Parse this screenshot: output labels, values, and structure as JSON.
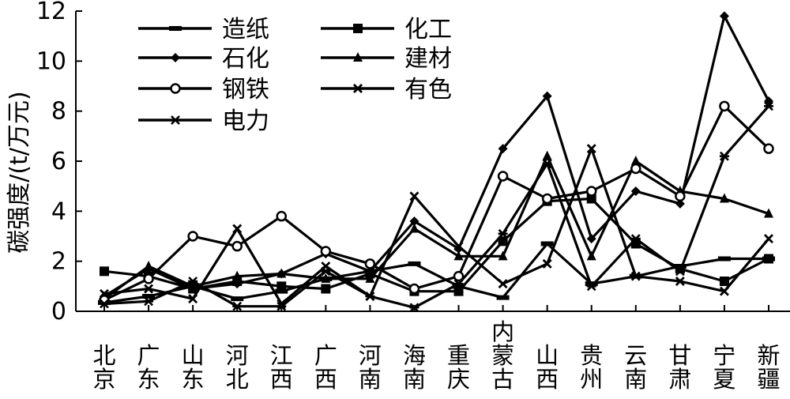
{
  "chart_data": {
    "type": "line",
    "ylabel": "碳强度/(t/万元)",
    "ylim": [
      0,
      12
    ],
    "yticks": [
      "0",
      "2",
      "4",
      "6",
      "8",
      "10",
      "12"
    ],
    "categories": [
      "北京",
      "广东",
      "山东",
      "河北",
      "江西",
      "广西",
      "河南",
      "海南",
      "重庆",
      "内蒙古",
      "山西",
      "贵州",
      "云南",
      "甘肃",
      "宁夏",
      "新疆"
    ],
    "legend_position": "top-left",
    "series": [
      {
        "name": "造纸",
        "marker": "dash",
        "values": [
          0.35,
          0.6,
          1.0,
          0.5,
          0.8,
          1.3,
          1.6,
          1.9,
          1.0,
          0.55,
          2.7,
          1.1,
          1.4,
          1.8,
          2.1,
          2.1
        ]
      },
      {
        "name": "化工",
        "marker": "filled-square",
        "values": [
          1.6,
          1.4,
          0.9,
          1.2,
          1.0,
          0.9,
          1.5,
          0.8,
          0.8,
          2.8,
          4.4,
          4.5,
          2.7,
          1.7,
          1.2,
          2.1
        ]
      },
      {
        "name": "石化",
        "marker": "filled-diamond",
        "values": [
          0.6,
          1.7,
          0.9,
          1.1,
          1.5,
          2.3,
          1.6,
          3.6,
          2.5,
          6.5,
          8.6,
          2.9,
          4.8,
          4.3,
          11.8,
          8.4
        ]
      },
      {
        "name": "建材",
        "marker": "filled-triangle",
        "values": [
          0.5,
          1.8,
          1.0,
          1.4,
          1.5,
          1.3,
          1.3,
          3.3,
          2.2,
          2.2,
          6.2,
          2.2,
          6.0,
          4.8,
          4.5,
          3.9
        ]
      },
      {
        "name": "钢铁",
        "marker": "open-circle",
        "values": [
          0.45,
          1.3,
          3.0,
          2.6,
          3.8,
          2.4,
          1.9,
          0.9,
          1.4,
          5.4,
          4.5,
          4.8,
          5.7,
          4.6,
          8.2,
          6.5
        ]
      },
      {
        "name": "有色",
        "marker": "x",
        "values": [
          0.7,
          0.9,
          0.5,
          3.3,
          0.3,
          1.8,
          0.6,
          4.6,
          2.6,
          1.1,
          1.9,
          6.5,
          1.4,
          1.2,
          0.8,
          2.9
        ]
      },
      {
        "name": "电力",
        "marker": "star",
        "values": [
          0.3,
          0.4,
          1.2,
          0.2,
          0.2,
          1.6,
          0.6,
          0.15,
          1.1,
          3.1,
          5.9,
          1.0,
          2.9,
          1.6,
          6.2,
          8.2
        ]
      }
    ]
  }
}
